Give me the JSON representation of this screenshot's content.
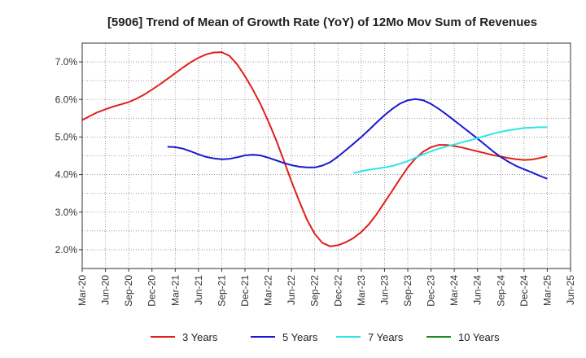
{
  "chart_data": {
    "type": "line",
    "title": "[5906]  Trend of Mean of Growth Rate (YoY) of 12Mo Mov Sum of Revenues",
    "xlabel": "",
    "ylabel": "",
    "ylim": [
      1.5,
      7.5
    ],
    "yticks": [
      2.0,
      3.0,
      4.0,
      5.0,
      6.0,
      7.0
    ],
    "ytick_labels": [
      "2.0%",
      "3.0%",
      "4.0%",
      "5.0%",
      "6.0%",
      "7.0%"
    ],
    "x_tick_labels": [
      "Mar-20",
      "Jun-20",
      "Sep-20",
      "Dec-20",
      "Mar-21",
      "Jun-21",
      "Sep-21",
      "Dec-21",
      "Mar-22",
      "Jun-22",
      "Sep-22",
      "Dec-22",
      "Mar-23",
      "Jun-23",
      "Sep-23",
      "Dec-23",
      "Mar-24",
      "Jun-24",
      "Sep-24",
      "Dec-24",
      "Mar-25",
      "Jun-25"
    ],
    "grid": true,
    "legend_position": "bottom",
    "series": [
      {
        "name": "3 Years",
        "color": "#e0201b",
        "start_index": 0,
        "values": [
          5.45,
          5.56,
          5.66,
          5.74,
          5.81,
          5.87,
          5.93,
          6.02,
          6.13,
          6.26,
          6.4,
          6.55,
          6.7,
          6.85,
          6.99,
          7.11,
          7.2,
          7.25,
          7.26,
          7.16,
          6.93,
          6.62,
          6.27,
          5.88,
          5.42,
          4.93,
          4.38,
          3.82,
          3.29,
          2.8,
          2.42,
          2.18,
          2.09,
          2.12,
          2.2,
          2.31,
          2.47,
          2.68,
          2.95,
          3.26,
          3.57,
          3.89,
          4.19,
          4.43,
          4.61,
          4.73,
          4.79,
          4.79,
          4.76,
          4.72,
          4.67,
          4.62,
          4.57,
          4.52,
          4.48,
          4.44,
          4.41,
          4.39,
          4.4,
          4.44,
          4.49
        ]
      },
      {
        "name": "5 Years",
        "color": "#1a1ad1",
        "start_index": 11,
        "values": [
          4.74,
          4.73,
          4.69,
          4.62,
          4.54,
          4.47,
          4.43,
          4.41,
          4.42,
          4.46,
          4.51,
          4.53,
          4.51,
          4.45,
          4.38,
          4.31,
          4.25,
          4.21,
          4.19,
          4.19,
          4.24,
          4.33,
          4.48,
          4.65,
          4.82,
          5.0,
          5.19,
          5.39,
          5.58,
          5.75,
          5.89,
          5.98,
          6.01,
          5.98,
          5.88,
          5.75,
          5.6,
          5.44,
          5.28,
          5.12,
          4.96,
          4.79,
          4.62,
          4.47,
          4.34,
          4.23,
          4.14,
          4.06,
          3.97,
          3.89
        ]
      },
      {
        "name": "7 Years",
        "color": "#2ee6e6",
        "start_index": 35,
        "values": [
          4.04,
          4.09,
          4.13,
          4.16,
          4.19,
          4.23,
          4.29,
          4.36,
          4.45,
          4.54,
          4.62,
          4.69,
          4.75,
          4.8,
          4.86,
          4.91,
          4.97,
          5.03,
          5.09,
          5.14,
          5.18,
          5.21,
          5.24,
          5.25,
          5.26,
          5.26
        ]
      },
      {
        "name": "10 Years",
        "color": "#1a8c1a",
        "start_index": 0,
        "values": []
      }
    ]
  }
}
